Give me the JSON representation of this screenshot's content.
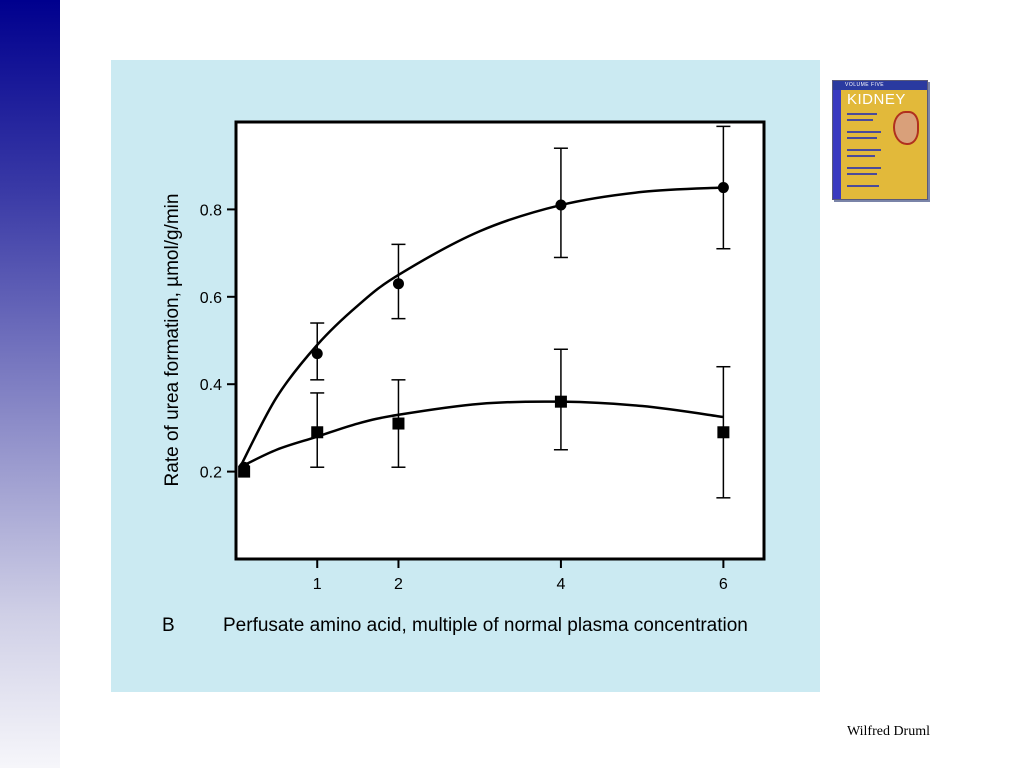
{
  "chart_data": {
    "type": "line",
    "panel_label": "B",
    "xlabel": "Perfusate amino acid, multiple of normal plasma concentration",
    "ylabel": "Rate of urea formation, µmol/g/min",
    "xlim": [
      0,
      6.5
    ],
    "ylim": [
      0,
      1.0
    ],
    "x_ticks": [
      1,
      2,
      4,
      6
    ],
    "y_ticks": [
      0.2,
      0.4,
      0.6,
      0.8
    ],
    "x_tick_labels": [
      "1",
      "2",
      "4",
      "6"
    ],
    "y_tick_labels": [
      "0.2",
      "0.4",
      "0.6",
      "0.8"
    ],
    "grid": false,
    "legend": "none",
    "series": [
      {
        "marker": "circle",
        "color": "#000000",
        "points": [
          {
            "x": 0.1,
            "y": 0.21,
            "err_low": 0.21,
            "err_high": 0.21
          },
          {
            "x": 1,
            "y": 0.47,
            "err_low": 0.41,
            "err_high": 0.54
          },
          {
            "x": 2,
            "y": 0.63,
            "err_low": 0.55,
            "err_high": 0.72
          },
          {
            "x": 4,
            "y": 0.81,
            "err_low": 0.69,
            "err_high": 0.94
          },
          {
            "x": 6,
            "y": 0.85,
            "err_low": 0.71,
            "err_high": 0.99
          }
        ],
        "curve": [
          [
            0.05,
            0.21
          ],
          [
            0.5,
            0.37
          ],
          [
            1,
            0.49
          ],
          [
            1.5,
            0.58
          ],
          [
            2,
            0.65
          ],
          [
            3,
            0.75
          ],
          [
            4,
            0.81
          ],
          [
            5,
            0.84
          ],
          [
            6,
            0.85
          ]
        ]
      },
      {
        "marker": "square",
        "color": "#000000",
        "points": [
          {
            "x": 0.1,
            "y": 0.2,
            "err_low": 0.2,
            "err_high": 0.2
          },
          {
            "x": 1,
            "y": 0.29,
            "err_low": 0.21,
            "err_high": 0.38
          },
          {
            "x": 2,
            "y": 0.31,
            "err_low": 0.21,
            "err_high": 0.41
          },
          {
            "x": 4,
            "y": 0.36,
            "err_low": 0.25,
            "err_high": 0.48
          },
          {
            "x": 6,
            "y": 0.29,
            "err_low": 0.14,
            "err_high": 0.44
          }
        ],
        "curve": [
          [
            0.05,
            0.21
          ],
          [
            0.5,
            0.25
          ],
          [
            1,
            0.28
          ],
          [
            1.5,
            0.31
          ],
          [
            2,
            0.33
          ],
          [
            3,
            0.355
          ],
          [
            4,
            0.36
          ],
          [
            5,
            0.35
          ],
          [
            6,
            0.325
          ]
        ]
      }
    ]
  },
  "book": {
    "band_text": "VOLUME FIVE",
    "title": "KIDNEY"
  },
  "footer": {
    "author": "Wilfred Druml"
  },
  "colors": {
    "panel_background": "#cbeaf2",
    "sidebar_top": "#00008e",
    "sidebar_bottom": "#f6f6fa",
    "book_cover": "#e2b93a"
  }
}
